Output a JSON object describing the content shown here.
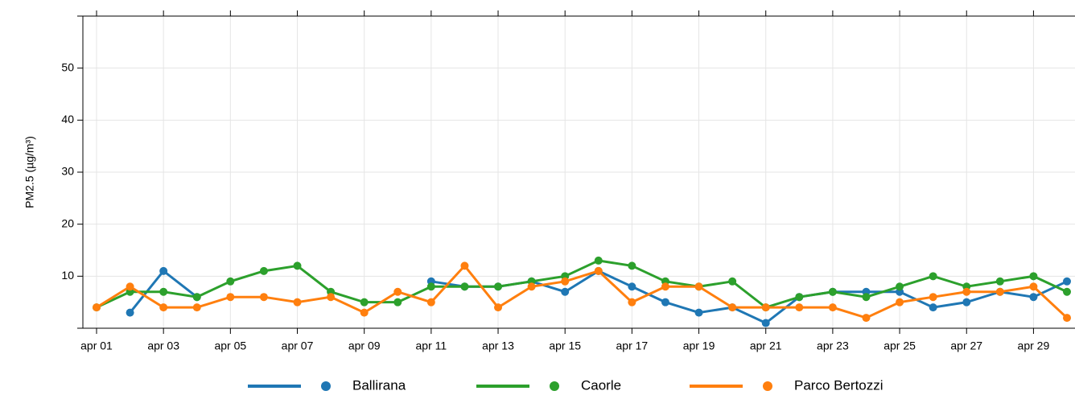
{
  "chart_data": {
    "type": "line",
    "y_label": "PM2.5 (µg/m³)",
    "categories": [
      "apr 01",
      null,
      "apr 03",
      null,
      "apr 05",
      null,
      "apr 07",
      null,
      "apr 09",
      null,
      "apr 11",
      null,
      "apr 13",
      null,
      "apr 15",
      null,
      "apr 17",
      null,
      "apr 19",
      null,
      "apr 21",
      null,
      "apr 23",
      null,
      "apr 25",
      null,
      "apr 27",
      null,
      "apr 29",
      null
    ],
    "series": [
      {
        "name": "Ballirana",
        "color": "#1f77b4",
        "values": [
          null,
          3,
          11,
          6,
          null,
          null,
          null,
          null,
          null,
          null,
          9,
          8,
          8,
          9,
          7,
          11,
          8,
          5,
          3,
          4,
          1,
          6,
          7,
          7,
          7,
          4,
          5,
          7,
          6,
          9
        ]
      },
      {
        "name": "Caorle",
        "color": "#2ca02c",
        "values": [
          4,
          7,
          7,
          6,
          9,
          11,
          12,
          7,
          5,
          5,
          8,
          8,
          8,
          9,
          10,
          13,
          12,
          9,
          8,
          9,
          4,
          6,
          7,
          6,
          8,
          10,
          8,
          9,
          10,
          7
        ]
      },
      {
        "name": "Parco Bertozzi",
        "color": "#ff7f0e",
        "values": [
          4,
          8,
          4,
          4,
          6,
          6,
          5,
          6,
          3,
          7,
          5,
          12,
          4,
          8,
          9,
          11,
          5,
          8,
          8,
          4,
          4,
          4,
          4,
          2,
          5,
          6,
          7,
          7,
          8,
          2
        ]
      }
    ],
    "ylim": [
      0,
      60
    ],
    "yticks": [
      10,
      20,
      30,
      40,
      50
    ],
    "grid": true,
    "legend": "bottom"
  }
}
